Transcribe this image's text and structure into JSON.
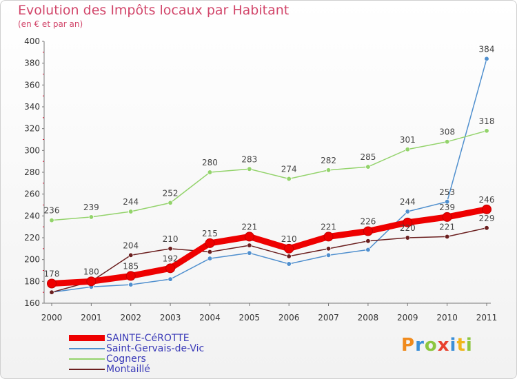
{
  "title": "Evolution des Impôts locaux par Habitant",
  "subtitle": "(en € et par an)",
  "logo_text": "Proxiti",
  "chart_data": {
    "type": "line",
    "x": [
      "2000",
      "2001",
      "2002",
      "2003",
      "2004",
      "2005",
      "2006",
      "2007",
      "2008",
      "2009",
      "2010",
      "2011"
    ],
    "ylim": [
      160,
      400
    ],
    "yticks": [
      160,
      180,
      200,
      220,
      240,
      260,
      280,
      300,
      320,
      340,
      360,
      380,
      400
    ],
    "grid": false,
    "legend_position": "bottom-left",
    "series": [
      {
        "name": "Saint-Gervais-de-Vic",
        "color": "#4f8fce",
        "values": [
          170,
          175,
          177,
          182,
          201,
          206,
          196,
          204,
          209,
          244,
          253,
          384
        ],
        "labeled": [
          false,
          false,
          false,
          false,
          false,
          false,
          false,
          false,
          false,
          true,
          true,
          true
        ]
      },
      {
        "name": "Cogners",
        "color": "#93d36b",
        "values": [
          236,
          239,
          244,
          252,
          280,
          283,
          274,
          282,
          285,
          301,
          308,
          318
        ],
        "labeled": [
          true,
          true,
          true,
          true,
          true,
          true,
          true,
          true,
          true,
          true,
          true,
          true
        ]
      },
      {
        "name": "Montaillé",
        "color": "#6b1f1f",
        "values": [
          170,
          180,
          204,
          210,
          207,
          213,
          203,
          210,
          217,
          220,
          221,
          229
        ],
        "labeled": [
          false,
          false,
          true,
          true,
          false,
          false,
          false,
          false,
          false,
          true,
          true,
          true
        ]
      },
      {
        "name": "SAINTE-CéROTTE",
        "color": "#ee0000",
        "values": [
          178,
          180,
          185,
          192,
          215,
          221,
          210,
          221,
          226,
          234,
          239,
          246
        ],
        "labeled": [
          true,
          true,
          true,
          true,
          true,
          true,
          true,
          true,
          true,
          false,
          true,
          true
        ]
      }
    ]
  }
}
